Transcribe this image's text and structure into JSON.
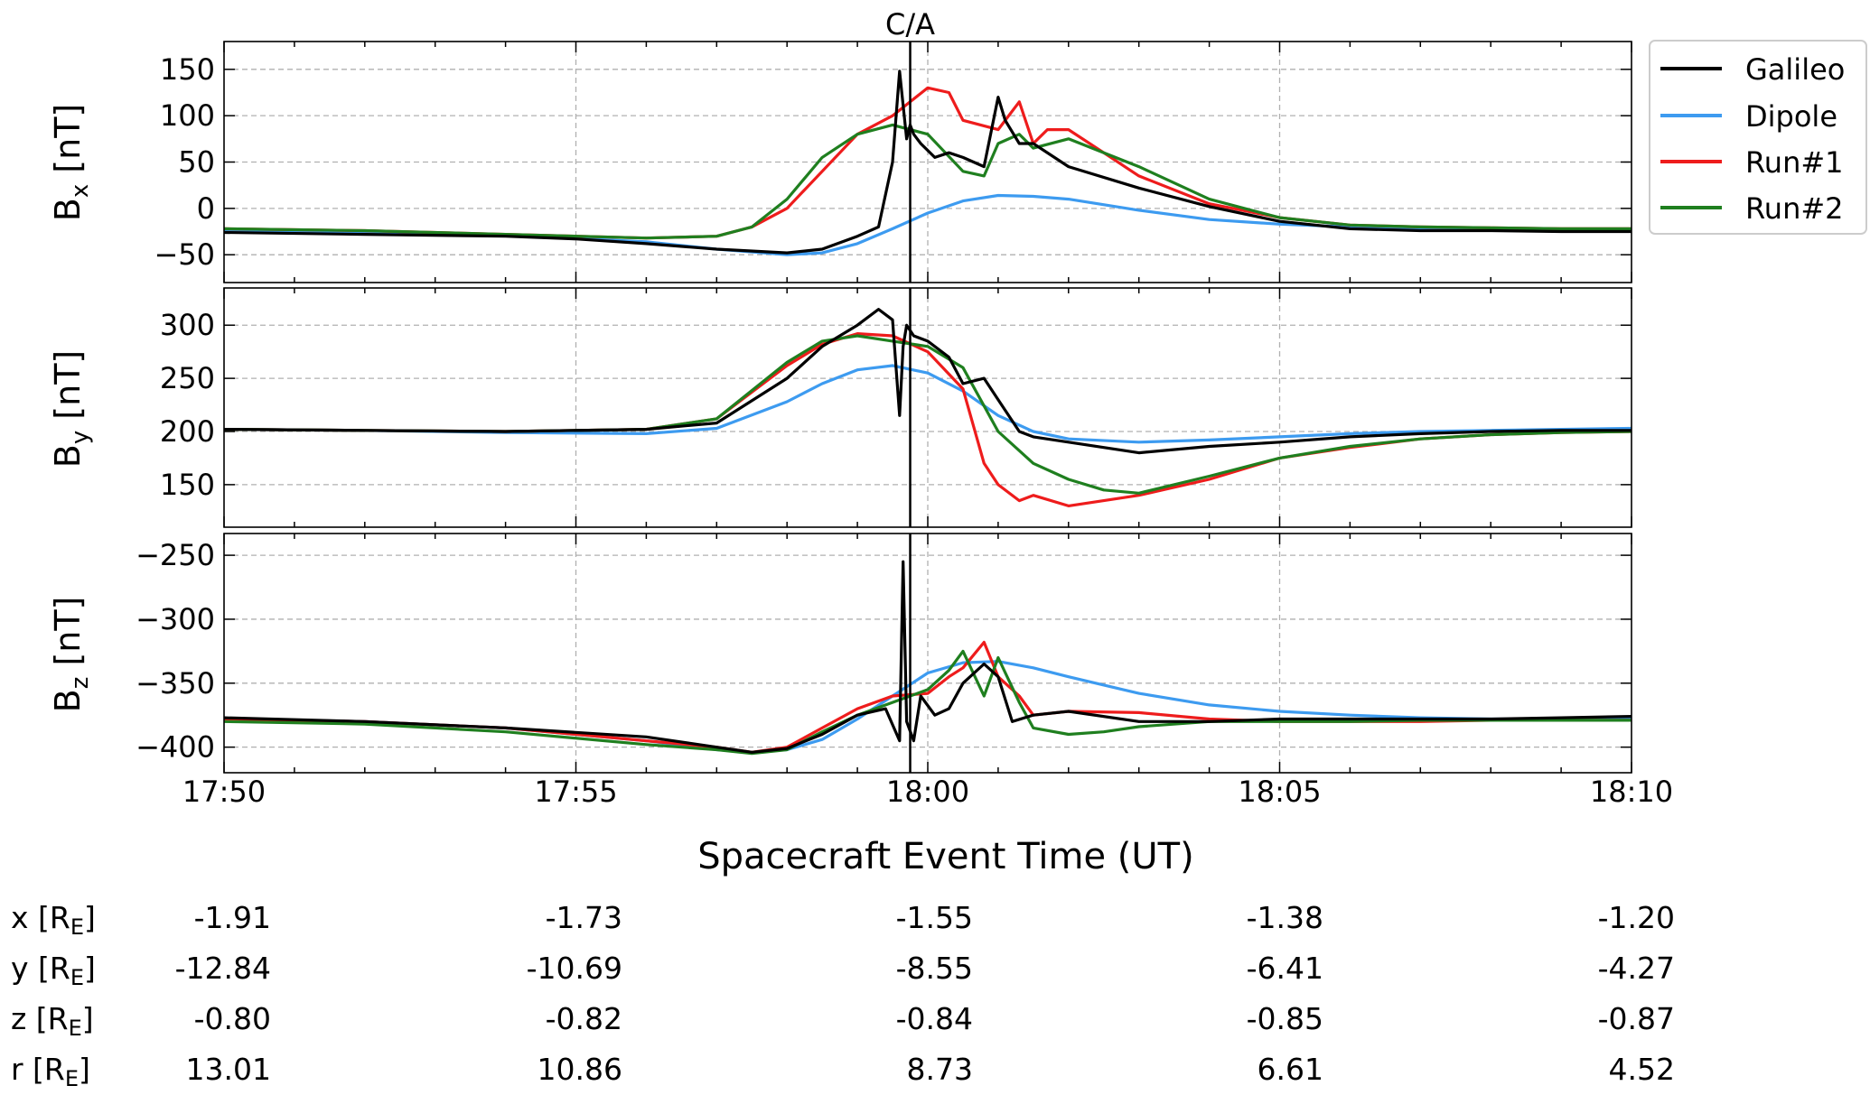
{
  "chart_data": {
    "type": "line",
    "xlabel": "Spacecraft Event Time (UT)",
    "x_tick_labels": [
      "17:50",
      "17:55",
      "18:00",
      "18:05",
      "18:10"
    ],
    "x_unit": "minutes after 17:50",
    "xlim": [
      0,
      20
    ],
    "grid": true,
    "legend_placement": "outside-top-right",
    "annotation": {
      "label": "C/A",
      "x": 9.75
    },
    "colors": {
      "Galileo": "#000000",
      "Dipole": "#3d9bf0",
      "Run#1": "#ee1c1c",
      "Run#2": "#1f7f1f"
    },
    "panels": [
      {
        "ylabel_main": "B",
        "ylabel_sub": "x",
        "ylabel_unit": " [nT]",
        "ylim": [
          -80,
          180
        ],
        "yticks": [
          "150",
          "100",
          "50",
          "0",
          "−50"
        ],
        "ytick_values": [
          150,
          100,
          50,
          0,
          -50
        ],
        "series": [
          {
            "name": "Galileo",
            "x": [
              0,
              2,
              4,
              5,
              6,
              7,
              8,
              8.5,
              9,
              9.3,
              9.5,
              9.6,
              9.7,
              9.75,
              9.8,
              9.9,
              10.1,
              10.3,
              10.5,
              10.8,
              11,
              11.1,
              11.3,
              11.5,
              12,
              13,
              14,
              15,
              16,
              17,
              18,
              19,
              20
            ],
            "y": [
              -26,
              -28,
              -30,
              -33,
              -38,
              -44,
              -48,
              -44,
              -30,
              -20,
              50,
              148,
              75,
              90,
              80,
              70,
              55,
              60,
              55,
              45,
              120,
              95,
              70,
              70,
              45,
              22,
              2,
              -14,
              -22,
              -24,
              -24,
              -25,
              -25
            ]
          },
          {
            "name": "Dipole",
            "x": [
              0,
              2,
              4,
              6,
              7,
              8,
              8.5,
              9,
              9.5,
              10,
              10.5,
              11,
              11.5,
              12,
              13,
              14,
              15,
              16,
              17,
              18,
              19,
              20
            ],
            "y": [
              -24,
              -26,
              -29,
              -36,
              -44,
              -50,
              -48,
              -38,
              -22,
              -5,
              8,
              14,
              13,
              10,
              -2,
              -12,
              -17,
              -20,
              -22,
              -23,
              -23,
              -23
            ]
          },
          {
            "name": "Run#1",
            "x": [
              0,
              2,
              4,
              6,
              7,
              7.5,
              8,
              8.5,
              9,
              9.5,
              10,
              10.3,
              10.5,
              11,
              11.3,
              11.5,
              11.7,
              12,
              12.5,
              13,
              14,
              15,
              16,
              17,
              18,
              19,
              20
            ],
            "y": [
              -22,
              -24,
              -28,
              -32,
              -30,
              -20,
              0,
              40,
              80,
              100,
              130,
              125,
              95,
              85,
              115,
              70,
              85,
              85,
              60,
              35,
              5,
              -10,
              -18,
              -20,
              -21,
              -22,
              -22
            ]
          },
          {
            "name": "Run#2",
            "x": [
              0,
              2,
              4,
              6,
              7,
              7.5,
              8,
              8.5,
              9,
              9.5,
              10,
              10.5,
              10.8,
              11,
              11.3,
              11.5,
              12,
              13,
              14,
              15,
              16,
              17,
              18,
              19,
              20
            ],
            "y": [
              -22,
              -24,
              -28,
              -32,
              -30,
              -20,
              10,
              55,
              80,
              90,
              80,
              40,
              35,
              70,
              80,
              65,
              75,
              45,
              10,
              -10,
              -18,
              -20,
              -21,
              -22,
              -22
            ]
          }
        ]
      },
      {
        "ylabel_main": "B",
        "ylabel_sub": "y",
        "ylabel_unit": " [nT]",
        "ylim": [
          110,
          335
        ],
        "yticks": [
          "300",
          "250",
          "200",
          "150"
        ],
        "ytick_values": [
          300,
          250,
          200,
          150
        ],
        "series": [
          {
            "name": "Galileo",
            "x": [
              0,
              2,
              4,
              6,
              7,
              8,
              8.5,
              9,
              9.3,
              9.5,
              9.6,
              9.65,
              9.7,
              9.75,
              9.8,
              10,
              10.3,
              10.5,
              10.8,
              11,
              11.3,
              11.5,
              12,
              13,
              14,
              15,
              16,
              17,
              18,
              19,
              20
            ],
            "y": [
              202,
              201,
              200,
              202,
              208,
              250,
              280,
              300,
              315,
              305,
              215,
              280,
              300,
              295,
              290,
              285,
              270,
              245,
              250,
              230,
              200,
              195,
              190,
              180,
              186,
              190,
              195,
              198,
              200,
              201,
              201
            ]
          },
          {
            "name": "Dipole",
            "x": [
              0,
              2,
              4,
              6,
              7,
              8,
              8.5,
              9,
              9.5,
              10,
              10.5,
              11,
              11.5,
              12,
              13,
              14,
              15,
              16,
              17,
              18,
              19,
              20
            ],
            "y": [
              202,
              201,
              199,
              198,
              203,
              228,
              245,
              258,
              262,
              255,
              238,
              215,
              200,
              193,
              190,
              192,
              195,
              198,
              200,
              201,
              202,
              203
            ]
          },
          {
            "name": "Run#1",
            "x": [
              0,
              2,
              4,
              6,
              7,
              8,
              8.5,
              9,
              9.5,
              10,
              10.5,
              10.8,
              11,
              11.3,
              11.5,
              12,
              12.5,
              13,
              14,
              15,
              16,
              17,
              18,
              19,
              20
            ],
            "y": [
              202,
              201,
              200,
              202,
              212,
              262,
              282,
              292,
              290,
              275,
              240,
              170,
              150,
              135,
              140,
              130,
              135,
              140,
              155,
              175,
              185,
              193,
              197,
              199,
              200
            ]
          },
          {
            "name": "Run#2",
            "x": [
              0,
              2,
              4,
              6,
              7,
              8,
              8.5,
              9,
              9.5,
              10,
              10.5,
              11,
              11.5,
              12,
              12.5,
              13,
              14,
              15,
              16,
              17,
              18,
              19,
              20
            ],
            "y": [
              202,
              201,
              200,
              202,
              212,
              265,
              285,
              290,
              285,
              280,
              260,
              200,
              170,
              155,
              145,
              142,
              158,
              175,
              186,
              193,
              197,
              199,
              200
            ]
          }
        ]
      },
      {
        "ylabel_main": "B",
        "ylabel_sub": "z",
        "ylabel_unit": " [nT]",
        "ylim": [
          -420,
          -233
        ],
        "yticks": [
          "−250",
          "−300",
          "−350",
          "−400"
        ],
        "ytick_values": [
          -250,
          -300,
          -350,
          -400
        ],
        "series": [
          {
            "name": "Galileo",
            "x": [
              0,
              2,
              4,
              6,
              7,
              7.5,
              8,
              8.5,
              9,
              9.4,
              9.6,
              9.65,
              9.7,
              9.8,
              9.9,
              10.1,
              10.3,
              10.5,
              10.8,
              11,
              11.2,
              11.5,
              12,
              13,
              14,
              15,
              16,
              17,
              18,
              19,
              20
            ],
            "y": [
              -377,
              -380,
              -385,
              -392,
              -400,
              -404,
              -401,
              -390,
              -375,
              -370,
              -395,
              -255,
              -380,
              -395,
              -360,
              -375,
              -370,
              -350,
              -335,
              -345,
              -380,
              -375,
              -372,
              -380,
              -380,
              -378,
              -378,
              -378,
              -378,
              -377,
              -376
            ]
          },
          {
            "name": "Dipole",
            "x": [
              0,
              2,
              4,
              6,
              7,
              7.5,
              8,
              8.5,
              9,
              9.5,
              10,
              10.5,
              11,
              11.5,
              12,
              13,
              14,
              15,
              16,
              17,
              18,
              19,
              20
            ],
            "y": [
              -378,
              -380,
              -385,
              -395,
              -402,
              -404,
              -402,
              -394,
              -378,
              -360,
              -342,
              -334,
              -333,
              -338,
              -345,
              -358,
              -367,
              -372,
              -375,
              -377,
              -378,
              -378,
              -378
            ]
          },
          {
            "name": "Run#1",
            "x": [
              0,
              2,
              4,
              6,
              7,
              7.5,
              8,
              8.5,
              9,
              9.5,
              10,
              10.3,
              10.5,
              10.8,
              11,
              11.3,
              11.5,
              12,
              13,
              14,
              15,
              16,
              17,
              18,
              19,
              20
            ],
            "y": [
              -378,
              -380,
              -385,
              -395,
              -400,
              -404,
              -400,
              -385,
              -370,
              -360,
              -358,
              -345,
              -338,
              -318,
              -345,
              -360,
              -375,
              -372,
              -373,
              -378,
              -380,
              -380,
              -380,
              -379,
              -379,
              -379
            ]
          },
          {
            "name": "Run#2",
            "x": [
              0,
              2,
              4,
              6,
              7,
              7.5,
              8,
              8.5,
              9,
              9.5,
              10,
              10.3,
              10.5,
              10.8,
              11,
              11.3,
              11.5,
              12,
              12.5,
              13,
              14,
              15,
              16,
              17,
              18,
              19,
              20
            ],
            "y": [
              -380,
              -382,
              -388,
              -398,
              -402,
              -405,
              -402,
              -388,
              -375,
              -365,
              -355,
              -340,
              -325,
              -360,
              -330,
              -365,
              -385,
              -390,
              -388,
              -384,
              -380,
              -380,
              -380,
              -379,
              -379,
              -379,
              -379
            ]
          }
        ]
      }
    ]
  },
  "ephemeris": {
    "rows": [
      {
        "main": "x [R",
        "sub": "E",
        "close": "]",
        "values": [
          "-1.91",
          "-1.73",
          "-1.55",
          "-1.38",
          "-1.20"
        ]
      },
      {
        "main": "y [R",
        "sub": "E",
        "close": "]",
        "values": [
          "-12.84",
          "-10.69",
          "-8.55",
          "-6.41",
          "-4.27"
        ]
      },
      {
        "main": "z [R",
        "sub": "E",
        "close": "]",
        "values": [
          "-0.80",
          "-0.82",
          "-0.84",
          "-0.85",
          "-0.87"
        ]
      },
      {
        "main": "r [R",
        "sub": "E",
        "close": "]",
        "values": [
          "13.01",
          "10.86",
          "8.73",
          "6.61",
          "4.52"
        ]
      }
    ]
  }
}
